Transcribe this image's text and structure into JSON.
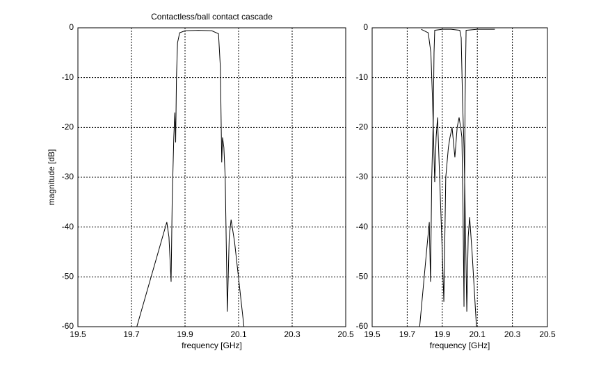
{
  "chart_data": [
    {
      "type": "line",
      "title": "Contactless/ball contact cascade",
      "xlabel": "frequency [GHz]",
      "ylabel": "magnitude [dB]",
      "xlim": [
        19.5,
        20.5
      ],
      "xticks": [
        19.5,
        19.7,
        19.9,
        20.1,
        20.3,
        20.5
      ],
      "ylim": [
        -60,
        0
      ],
      "yticks": [
        0,
        -10,
        -20,
        -30,
        -40,
        -50,
        -60
      ],
      "grid": true,
      "series": [
        {
          "color": "#000000",
          "x": [
            19.72,
            19.8,
            19.832,
            19.84,
            19.848,
            19.852,
            19.858,
            19.862,
            19.865,
            19.868,
            19.872,
            19.88,
            19.9,
            19.95,
            20.0,
            20.025,
            20.032,
            20.037,
            20.04,
            20.045,
            20.05,
            20.058,
            20.065,
            20.072,
            20.085,
            20.12
          ],
          "values": [
            -60,
            -45,
            -39,
            -42,
            -51,
            -35,
            -22,
            -17,
            -23,
            -10,
            -3,
            -1,
            -0.6,
            -0.5,
            -0.6,
            -1.2,
            -8,
            -27,
            -22,
            -24,
            -30,
            -57,
            -42,
            -38.5,
            -43,
            -60
          ]
        }
      ]
    },
    {
      "type": "line",
      "xlabel": "frequency [GHz]",
      "xlim": [
        19.5,
        20.5
      ],
      "xticks": [
        19.5,
        19.7,
        19.9,
        20.1,
        20.3,
        20.5
      ],
      "ylim": [
        -60,
        0
      ],
      "yticks": [
        0,
        -10,
        -20,
        -30,
        -40,
        -50,
        -60
      ],
      "grid": true,
      "series": [
        {
          "color": "#000000",
          "x": [
            19.771,
            19.81,
            19.826,
            19.833,
            19.84,
            19.849,
            19.853,
            19.857,
            19.9,
            19.95,
            20.0,
            20.008,
            20.016,
            20.024,
            20.03,
            20.04,
            20.048,
            20.056,
            20.07,
            20.095
          ],
          "values": [
            -60,
            -45,
            -39,
            -51,
            -30,
            -18,
            -5,
            -0.5,
            -0.3,
            -0.3,
            -0.5,
            -2,
            -15,
            -24,
            -35,
            -57,
            -42,
            -38,
            -45,
            -60
          ]
        },
        {
          "color": "#000000",
          "x": [
            19.78,
            19.82,
            19.835,
            19.845,
            19.857,
            19.865,
            19.873,
            19.885,
            19.9,
            19.909,
            19.92,
            19.935,
            19.944,
            19.956,
            19.972,
            19.985,
            19.996,
            20.005,
            20.012,
            20.018,
            20.024,
            20.03,
            20.036,
            20.1,
            20.2
          ],
          "values": [
            -0.3,
            -1,
            -5,
            -15,
            -31,
            -22,
            -18,
            -30,
            -45,
            -55,
            -30,
            -24,
            -22,
            -20,
            -26,
            -20,
            -18,
            -20,
            -22,
            -35,
            -56,
            -15,
            -0.5,
            -0.3,
            -0.3
          ]
        }
      ]
    }
  ]
}
